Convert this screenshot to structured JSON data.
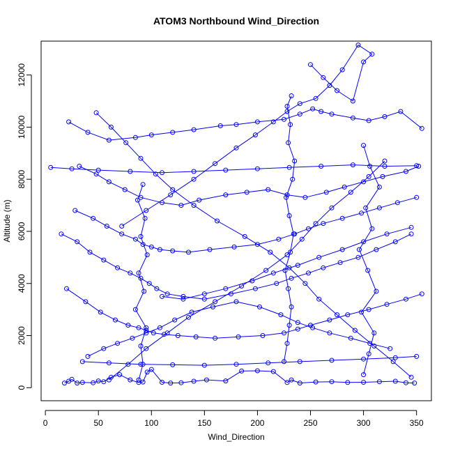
{
  "chart_data": {
    "type": "line",
    "title": "ATOM3 Northbound Wind_Direction",
    "xlabel": "Wind_Direction",
    "ylabel": "Altitude (m)",
    "xlim": [
      -4,
      364
    ],
    "ylim": [
      -500,
      13300
    ],
    "xticks": [
      0,
      50,
      100,
      150,
      200,
      250,
      300,
      350
    ],
    "yticks": [
      0,
      2000,
      4000,
      6000,
      8000,
      10000,
      12000
    ],
    "grid": false,
    "legend": "none",
    "series_color": "#0000ff",
    "marker": "open-circle",
    "series": [
      {
        "x": [
          18,
          22,
          25,
          30,
          35,
          45,
          50,
          55,
          62,
          70,
          80,
          88,
          92,
          96,
          100,
          110,
          118,
          128,
          140,
          152,
          170,
          185,
          200,
          215,
          228,
          232,
          240,
          255,
          270,
          285,
          300,
          315,
          330,
          340,
          348
        ],
        "y": [
          180,
          250,
          320,
          180,
          200,
          190,
          260,
          230,
          400,
          500,
          300,
          200,
          220,
          600,
          700,
          210,
          180,
          190,
          250,
          300,
          260,
          640,
          650,
          620,
          200,
          300,
          180,
          220,
          230,
          200,
          210,
          230,
          250,
          190,
          180
        ]
      },
      {
        "x": [
          22,
          40,
          60,
          85,
          100,
          120,
          140,
          165,
          180,
          200,
          225,
          240,
          252,
          260,
          270,
          290,
          305,
          320,
          335,
          355
        ],
        "y": [
          10200,
          9800,
          9500,
          9600,
          9700,
          9800,
          9900,
          10050,
          10100,
          10200,
          10300,
          10500,
          10700,
          10600,
          10500,
          10350,
          10250,
          10400,
          10600,
          9950
        ]
      },
      {
        "x": [
          32,
          48,
          60,
          75,
          90,
          110,
          128,
          145,
          170,
          190,
          210,
          228,
          245,
          265,
          282,
          300,
          318,
          340,
          352
        ],
        "y": [
          8500,
          8200,
          7900,
          7600,
          7300,
          7100,
          7000,
          7200,
          7400,
          7500,
          7600,
          7400,
          7300,
          7500,
          7700,
          7900,
          8100,
          8300,
          8500
        ]
      },
      {
        "x": [
          5,
          25,
          50,
          80,
          110,
          140,
          170,
          200,
          230,
          260,
          290,
          320,
          350
        ],
        "y": [
          8450,
          8400,
          8350,
          8300,
          8250,
          8300,
          8350,
          8400,
          8450,
          8500,
          8550,
          8500,
          8520
        ]
      },
      {
        "x": [
          15,
          30,
          42,
          55,
          68,
          80,
          90,
          98,
          105,
          115,
          130,
          150,
          175,
          198,
          218,
          232,
          248,
          262,
          278,
          295,
          312,
          330,
          345
        ],
        "y": [
          5900,
          5600,
          5200,
          4900,
          4600,
          4400,
          4200,
          4000,
          3800,
          3600,
          3500,
          3400,
          3600,
          3800,
          4000,
          4200,
          4400,
          4600,
          4800,
          5000,
          5300,
          5600,
          5900
        ]
      },
      {
        "x": [
          20,
          38,
          52,
          66,
          78,
          88,
          95,
          102,
          112,
          125,
          142,
          160,
          182,
          205,
          225,
          238,
          250,
          268,
          285,
          305,
          322,
          340,
          355
        ],
        "y": [
          3800,
          3300,
          2900,
          2600,
          2400,
          2300,
          2200,
          2100,
          2050,
          2000,
          1950,
          1900,
          1950,
          2000,
          2100,
          2250,
          2400,
          2600,
          2800,
          3000,
          3200,
          3400,
          3600
        ]
      },
      {
        "x": [
          28,
          45,
          58,
          72,
          85,
          92,
          100,
          108,
          120,
          135,
          155,
          178,
          200,
          220,
          235,
          248,
          262,
          280,
          298,
          315,
          332,
          350
        ],
        "y": [
          6800,
          6500,
          6200,
          5900,
          5700,
          5500,
          5400,
          5300,
          5250,
          5200,
          5300,
          5400,
          5500,
          5700,
          5900,
          6100,
          6300,
          6500,
          6700,
          6900,
          7100,
          7300
        ]
      },
      {
        "x": [
          40,
          55,
          68,
          82,
          95,
          108,
          122,
          138,
          158,
          180,
          202,
          222,
          238,
          252,
          268,
          288,
          306,
          325
        ],
        "y": [
          1200,
          1500,
          1700,
          1900,
          2100,
          2300,
          2600,
          2900,
          3100,
          3300,
          3100,
          2800,
          2500,
          2300,
          2100,
          1900,
          1700,
          1500
        ]
      },
      {
        "x": [
          48,
          62,
          76,
          90,
          104,
          120,
          140,
          162,
          188,
          212,
          230,
          245,
          258,
          275,
          292,
          310,
          328,
          345
        ],
        "y": [
          10550,
          10000,
          9400,
          8800,
          8200,
          7600,
          7000,
          6400,
          5800,
          5200,
          4600,
          4000,
          3400,
          2800,
          2200,
          1600,
          1000,
          400
        ]
      },
      {
        "x": [
          60,
          78,
          95,
          115,
          135,
          160,
          185,
          208,
          228,
          242,
          255,
          270,
          288,
          305,
          320
        ],
        "y": [
          300,
          900,
          1500,
          2100,
          2700,
          3300,
          3900,
          4500,
          5100,
          5700,
          6300,
          6900,
          7500,
          8100,
          8700
        ]
      },
      {
        "x": [
          250,
          262,
          275,
          290,
          300,
          308,
          295,
          280,
          268,
          255,
          240,
          228,
          215,
          198,
          180,
          160,
          140,
          118,
          95,
          72
        ],
        "y": [
          12400,
          11900,
          11400,
          11000,
          12500,
          12800,
          13150,
          12200,
          11600,
          11100,
          10900,
          10600,
          10200,
          9700,
          9200,
          8600,
          8000,
          7400,
          6800,
          6200
        ]
      },
      {
        "x": [
          225,
          228,
          230,
          232,
          229,
          226,
          231,
          234,
          230,
          227,
          233,
          235,
          229,
          231,
          228,
          232
        ],
        "y": [
          1000,
          1700,
          2400,
          3100,
          3800,
          4500,
          5200,
          5900,
          6600,
          7300,
          8000,
          8700,
          9400,
          10100,
          10800,
          11200
        ]
      },
      {
        "x": [
          88,
          92,
          90,
          95,
          85,
          93,
          88,
          96,
          90,
          94,
          87,
          92
        ],
        "y": [
          300,
          900,
          1600,
          2300,
          3000,
          3700,
          4400,
          5100,
          5800,
          6500,
          7200,
          7800
        ]
      },
      {
        "x": [
          300,
          305,
          310,
          298,
          312,
          304,
          296,
          308,
          302,
          315,
          306,
          300
        ],
        "y": [
          500,
          1300,
          2100,
          2900,
          3700,
          4500,
          5300,
          6100,
          6900,
          7700,
          8500,
          9300
        ]
      },
      {
        "x": [
          110,
          130,
          150,
          170,
          195,
          215,
          238,
          258,
          280,
          300,
          322,
          345
        ],
        "y": [
          3500,
          3400,
          3600,
          3800,
          4100,
          4400,
          4700,
          5000,
          5300,
          5600,
          5900,
          6150
        ]
      },
      {
        "x": [
          35,
          60,
          90,
          120,
          150,
          180,
          210,
          240,
          270,
          300,
          330,
          350
        ],
        "y": [
          1000,
          950,
          900,
          880,
          860,
          900,
          950,
          1000,
          1050,
          1100,
          1150,
          1200
        ]
      }
    ]
  }
}
